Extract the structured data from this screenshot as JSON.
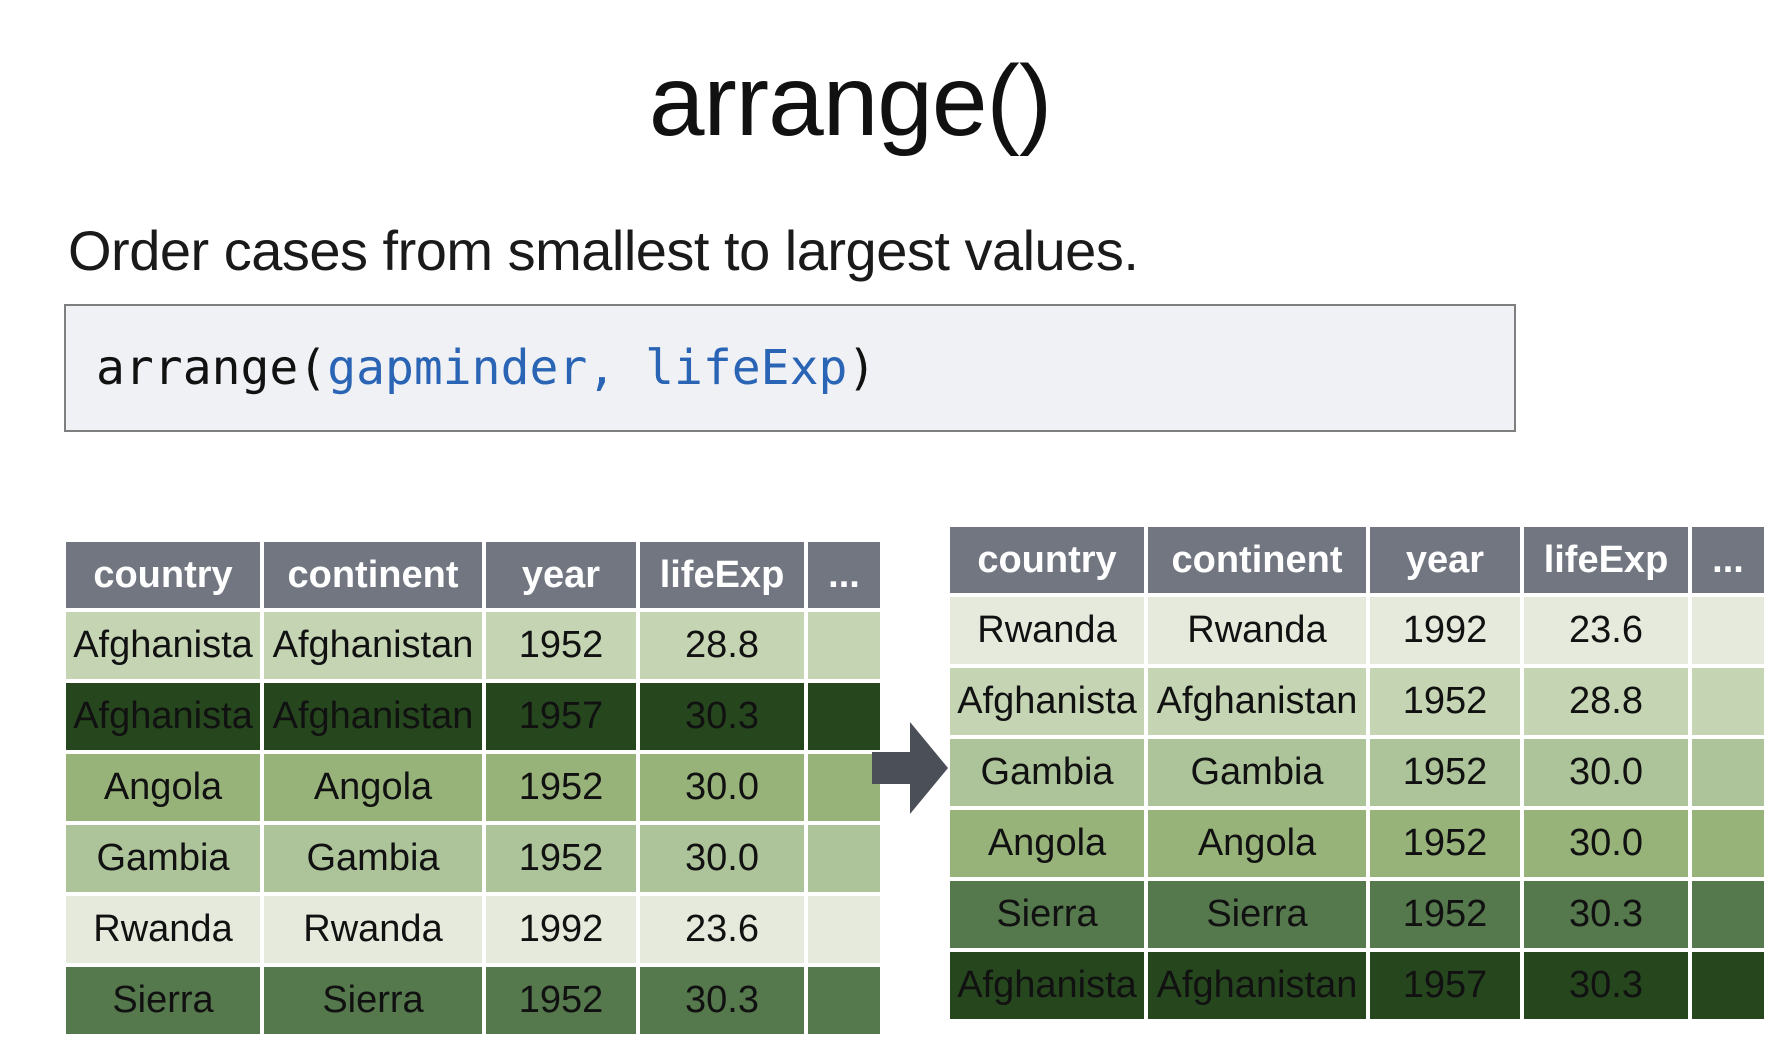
{
  "title": "arrange()",
  "subtitle": "Order cases from smallest to largest values.",
  "code": {
    "func": "arrange(",
    "args": "gapminder, lifeExp",
    "close": ")"
  },
  "columns": [
    "country",
    "continent",
    "year",
    "lifeExp",
    "..."
  ],
  "arrow_icon": "right-arrow-icon",
  "colors": {
    "header": "#717681",
    "code_args": "#2a64b5",
    "shade_lightest": "#e6eadc",
    "shade_light": "#c5d5b4",
    "shade_mid_light": "#adc49a",
    "shade_mid": "#97b37a",
    "shade_dark": "#55784d",
    "shade_darkest": "#26471e"
  },
  "left_table": {
    "rows": [
      {
        "country": "Afghanista",
        "continent": "Afghanistan",
        "year": "1952",
        "lifeExp": "28.8",
        "shade": "#c5d5b4"
      },
      {
        "country": "Afghanista",
        "continent": "Afghanistan",
        "year": "1957",
        "lifeExp": "30.3",
        "shade": "#26471e"
      },
      {
        "country": "Angola",
        "continent": "Angola",
        "year": "1952",
        "lifeExp": "30.0",
        "shade": "#97b37a"
      },
      {
        "country": "Gambia",
        "continent": "Gambia",
        "year": "1952",
        "lifeExp": "30.0",
        "shade": "#adc49a"
      },
      {
        "country": "Rwanda",
        "continent": "Rwanda",
        "year": "1992",
        "lifeExp": "23.6",
        "shade": "#e6eadc"
      },
      {
        "country": "Sierra",
        "continent": "Sierra",
        "year": "1952",
        "lifeExp": "30.3",
        "shade": "#55784d"
      }
    ]
  },
  "right_table": {
    "rows": [
      {
        "country": "Rwanda",
        "continent": "Rwanda",
        "year": "1992",
        "lifeExp": "23.6",
        "shade": "#e6eadc"
      },
      {
        "country": "Afghanista",
        "continent": "Afghanistan",
        "year": "1952",
        "lifeExp": "28.8",
        "shade": "#c5d5b4"
      },
      {
        "country": "Gambia",
        "continent": "Gambia",
        "year": "1952",
        "lifeExp": "30.0",
        "shade": "#adc49a"
      },
      {
        "country": "Angola",
        "continent": "Angola",
        "year": "1952",
        "lifeExp": "30.0",
        "shade": "#97b37a"
      },
      {
        "country": "Sierra",
        "continent": "Sierra",
        "year": "1952",
        "lifeExp": "30.3",
        "shade": "#55784d"
      },
      {
        "country": "Afghanista",
        "continent": "Afghanistan",
        "year": "1957",
        "lifeExp": "30.3",
        "shade": "#26471e"
      }
    ]
  }
}
